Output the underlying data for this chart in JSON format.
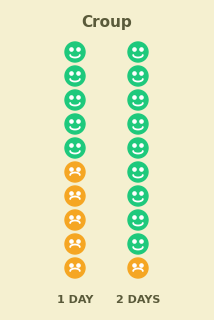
{
  "title": "Croup",
  "background_color": "#f5f0d0",
  "col1_label": "1 DAY",
  "col2_label": "2 DAYS",
  "n_rows": 10,
  "col1_green": 5,
  "col2_green": 9,
  "green_color": "#1EC97C",
  "orange_color": "#F5A623",
  "title_fontsize": 11,
  "label_fontsize": 8,
  "title_color": "#5a5a3a",
  "label_color": "#5a5a3a"
}
